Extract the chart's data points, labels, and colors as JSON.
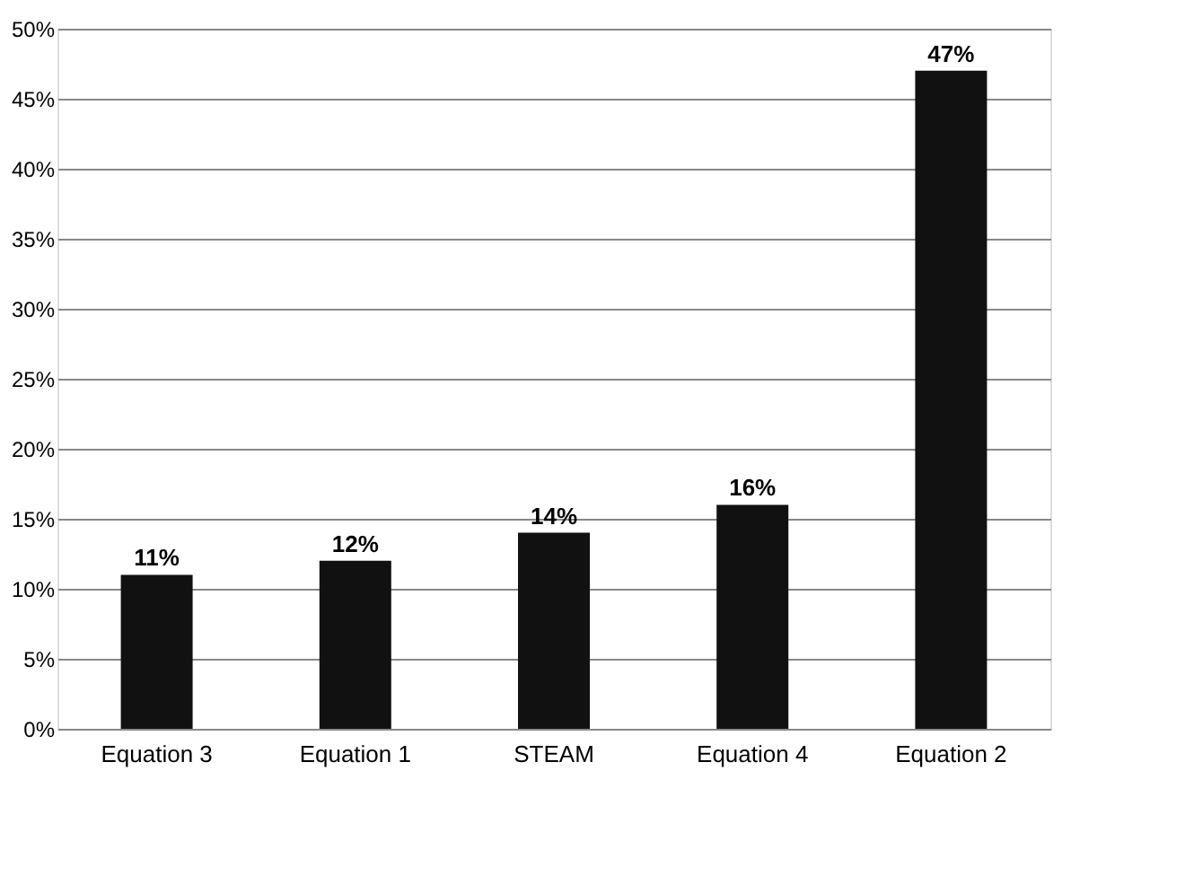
{
  "chart_data": {
    "type": "bar",
    "categories": [
      "Equation 3",
      "Equation 1",
      "STEAM",
      "Equation 4",
      "Equation 2"
    ],
    "values": [
      11,
      12,
      14,
      16,
      47
    ],
    "value_labels": [
      "11%",
      "12%",
      "14%",
      "16%",
      "47%"
    ],
    "color": "#111111",
    "ylim": [
      0,
      50
    ],
    "yticks": [
      {
        "value": 0,
        "label": "0%"
      },
      {
        "value": 5,
        "label": "5%"
      },
      {
        "value": 10,
        "label": "10%"
      },
      {
        "value": 15,
        "label": "15%"
      },
      {
        "value": 20,
        "label": "20%"
      },
      {
        "value": 25,
        "label": "25%"
      },
      {
        "value": 30,
        "label": "30%"
      },
      {
        "value": 35,
        "label": "35%"
      },
      {
        "value": 40,
        "label": "40%"
      },
      {
        "value": 45,
        "label": "45%"
      },
      {
        "value": 50,
        "label": "50%"
      }
    ],
    "grid": "y"
  }
}
